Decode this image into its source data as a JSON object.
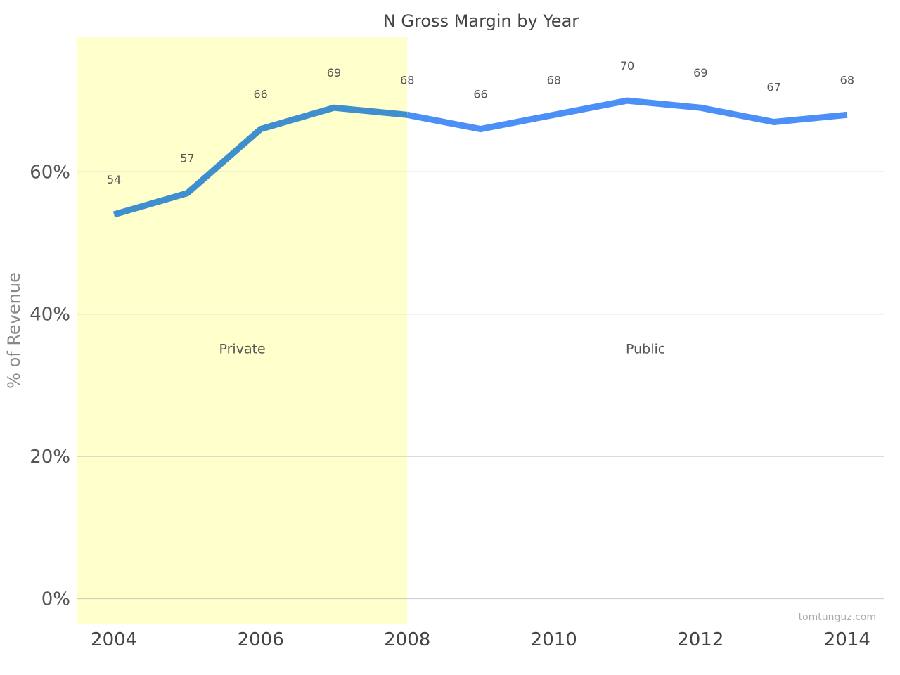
{
  "chart_data": {
    "type": "line",
    "title": "N Gross Margin by Year",
    "xlabel": "",
    "ylabel": "% of Revenue",
    "x": [
      2004,
      2005,
      2006,
      2007,
      2008,
      2009,
      2010,
      2011,
      2012,
      2013,
      2014
    ],
    "series": [
      {
        "values": [
          54,
          57,
          66,
          69,
          68,
          66,
          68,
          70,
          69,
          67,
          68
        ],
        "data_labels": [
          "54",
          "57",
          "66",
          "69",
          "68",
          "66",
          "68",
          "70",
          "69",
          "67",
          "68"
        ]
      }
    ],
    "xticks": [
      "2004",
      "2006",
      "2008",
      "2010",
      "2012",
      "2014"
    ],
    "yticks": [
      "0%",
      "20%",
      "40%",
      "60%"
    ],
    "xlim": [
      2003.5,
      2014.5
    ],
    "ylim": [
      -3.5,
      79
    ],
    "grid": true,
    "legend": "none",
    "shaded_regions": [
      {
        "label": "Private",
        "x_start": 2003.5,
        "x_end": 2008,
        "color": "#ffffcc"
      },
      {
        "label": "Public",
        "x_start": 2008,
        "x_end": 2014.5,
        "color": "#ffffff"
      }
    ],
    "colors": {
      "private_segment": "#3f8fcf",
      "public_segment": "#4b8ff7",
      "gridline": "#c8c8c8"
    },
    "credit": "tomtunguz.com"
  }
}
